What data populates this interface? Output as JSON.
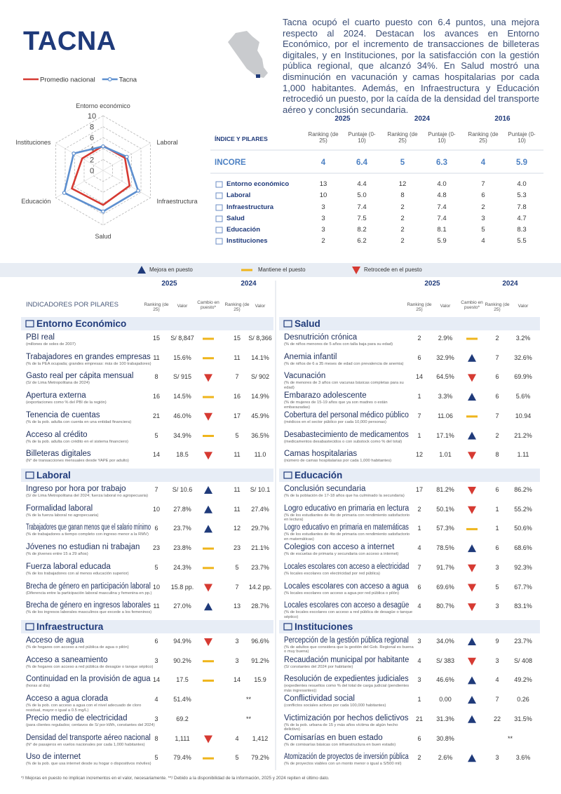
{
  "header": {
    "title": "TACNA",
    "description": "Tacna ocupó el cuarto puesto con 6.4 puntos, una mejora respecto al 2024. Destacan los avances en Entorno Económico, por el incremento de transacciones de billeteras digitales, y en Instituciones, por la satisfacción con la gestión pública regional, que alcanzó 34%. En Salud mostró una disminución en vacunación y camas hospitalarias por cada 1,000 habitantes. Además, en Infraestructura y Educación retrocedió un puesto, por la caída de la densidad del transporte aéreo y conclusión secundaria."
  },
  "radar": {
    "type": "radar",
    "axes": [
      "Entorno económico",
      "Laboral",
      "Infraestructura",
      "Salud",
      "Educación",
      "Instituciones"
    ],
    "rlim": [
      0,
      10
    ],
    "ticks": [
      10,
      8,
      6,
      4,
      2,
      0
    ],
    "series": [
      {
        "name": "Promedio nacional",
        "color": "#d63a32",
        "values": [
          4.5,
          4.6,
          5.6,
          6.3,
          6.6,
          4.4
        ]
      },
      {
        "name": "Tacna",
        "color": "#5d8fcf",
        "marker": "circle",
        "values": [
          4.4,
          5.0,
          7.4,
          7.5,
          8.2,
          6.2
        ]
      }
    ]
  },
  "pillars_table": {
    "years": [
      "2025",
      "2024",
      "2016"
    ],
    "header": "ÍNDICE Y PILARES",
    "col_labels": [
      "Ranking (de 25)",
      "Puntaje (0-10)"
    ],
    "rows": [
      {
        "name": "INCORE",
        "cells": [
          "4",
          "6.4",
          "5",
          "6.3",
          "4",
          "5.9"
        ]
      },
      {
        "name": "Entorno económico",
        "cells": [
          "13",
          "4.4",
          "12",
          "4.0",
          "7",
          "4.0"
        ]
      },
      {
        "name": "Laboral",
        "cells": [
          "10",
          "5.0",
          "8",
          "4.8",
          "6",
          "5.3"
        ]
      },
      {
        "name": "Infraestructura",
        "cells": [
          "3",
          "7.4",
          "2",
          "7.4",
          "2",
          "7.8"
        ]
      },
      {
        "name": "Salud",
        "cells": [
          "3",
          "7.5",
          "2",
          "7.4",
          "3",
          "4.7"
        ]
      },
      {
        "name": "Educación",
        "cells": [
          "3",
          "8.2",
          "2",
          "8.1",
          "5",
          "8.3"
        ]
      },
      {
        "name": "Instituciones",
        "cells": [
          "2",
          "6.2",
          "2",
          "5.9",
          "4",
          "5.5"
        ]
      }
    ]
  },
  "legend": {
    "up": "Mejora en puesto",
    "same": "Mantiene el puesto",
    "down": "Retrocede en el puesto"
  },
  "indicators": {
    "years": [
      "2025",
      "2024"
    ],
    "header": "INDICADORES POR PILARES",
    "col_labels": {
      "ranking": "Ranking (de 25)",
      "value": "Valor",
      "change": "Cambio en puesto*"
    },
    "pillars": [
      {
        "name": "Entorno Económico",
        "rows": [
          {
            "name": "PBI real",
            "note": "(millones de soles de 2007)",
            "r25": "15",
            "v25": "S/ 8,847",
            "change": "same",
            "r24": "15",
            "v24": "S/ 8,366"
          },
          {
            "name": "Trabajadores en grandes empresas",
            "note": "(% de la PEA ocupada; grandes empresas: más de 100 trabajadores)",
            "r25": "11",
            "v25": "15.6%",
            "change": "same",
            "r24": "11",
            "v24": "14.1%"
          },
          {
            "name": "Gasto real per cápita mensual",
            "note": "(S/ de Lima Metropolitana de 2024)",
            "r25": "8",
            "v25": "S/ 915",
            "change": "down",
            "r24": "7",
            "v24": "S/ 902"
          },
          {
            "name": "Apertura externa",
            "note": "(exportaciones como % del PBI de la región)",
            "r25": "16",
            "v25": "14.5%",
            "change": "same",
            "r24": "16",
            "v24": "14.9%"
          },
          {
            "name": "Tenencia de cuentas",
            "note": "(% de la pob. adulta con cuenta en una entidad financiera)",
            "r25": "21",
            "v25": "46.0%",
            "change": "down",
            "r24": "17",
            "v24": "45.9%"
          },
          {
            "name": "Acceso al crédito",
            "note": "(% de la pob. adulta con crédito en el sistema financiero)",
            "r25": "5",
            "v25": "34.9%",
            "change": "same",
            "r24": "5",
            "v24": "36.5%"
          },
          {
            "name": "Billeteras digitales",
            "note": "(N° de transacciones mensuales desde YAPE por adulto)",
            "r25": "14",
            "v25": "18.5",
            "change": "down",
            "r24": "11",
            "v24": "11.0"
          }
        ]
      },
      {
        "name": "Laboral",
        "rows": [
          {
            "name": "Ingreso por hora por trabajo",
            "note": "(S/ de Lima Metropolitana del 2024; fuerza laboral no agropecuaria)",
            "r25": "7",
            "v25": "S/ 10.6",
            "change": "up",
            "r24": "11",
            "v24": "S/ 10.1"
          },
          {
            "name": "Formalidad laboral",
            "note": "(% de la fuerza laboral no agropecuaria)",
            "r25": "10",
            "v25": "27.8%",
            "change": "up",
            "r24": "11",
            "v24": "27.4%"
          },
          {
            "name": "Trabajadores que ganan menos que el salario mínimo",
            "note": "(% de trabajadores a tiempo completo con ingreso menor a la RMV)",
            "r25": "6",
            "v25": "23.7%",
            "change": "up",
            "r24": "12",
            "v24": "29.7%"
          },
          {
            "name": "Jóvenes no estudian ni trabajan",
            "note": "(% de jóvenes entre 15 a 29 años)",
            "r25": "23",
            "v25": "23.8%",
            "change": "same",
            "r24": "23",
            "v24": "21.1%"
          },
          {
            "name": "Fuerza laboral educada",
            "note": "(% de los trabajadores con al menos educación superior)",
            "r25": "5",
            "v25": "24.3%",
            "change": "same",
            "r24": "5",
            "v24": "23.7%"
          },
          {
            "name": "Brecha de género en participación laboral",
            "note": "(Diferencia entre la participación laboral masculina y femenina en pp.)",
            "r25": "10",
            "v25": "15.8 pp.",
            "change": "down",
            "r24": "7",
            "v24": "14.2 pp."
          },
          {
            "name": "Brecha de género en ingresos laborales",
            "note": "(% de los ingresos laborales masculinos que excede a los femeninos)",
            "r25": "11",
            "v25": "27.0%",
            "change": "up",
            "r24": "13",
            "v24": "28.7%"
          }
        ]
      },
      {
        "name": "Infraestructura",
        "rows": [
          {
            "name": "Acceso de agua",
            "note": "(% de hogares con acceso a red pública de agua o pilón)",
            "r25": "6",
            "v25": "94.9%",
            "change": "down",
            "r24": "3",
            "v24": "96.6%"
          },
          {
            "name": "Acceso a saneamiento",
            "note": "(% de hogares con acceso a red pública de desagüe o tanque séptico)",
            "r25": "3",
            "v25": "90.2%",
            "change": "same",
            "r24": "3",
            "v24": "91.2%"
          },
          {
            "name": "Continuidad en la provisión de agua",
            "note": "(horas al día)",
            "r25": "14",
            "v25": "17.5",
            "change": "same",
            "r24": "14",
            "v24": "15.9"
          },
          {
            "name": "Acceso a agua clorada",
            "note": "(% de la pob. con acceso a agua con el nivel adecuado de cloro residual, mayor o igual a 0.5 mg/L)",
            "r25": "4",
            "v25": "51.4%",
            "r24": "**"
          },
          {
            "name": "Precio medio de electricidad",
            "note": "(para clientes regulados; centavos de S/ por kWh, constantes del 2024)",
            "r25": "3",
            "v25": "69.2",
            "r24": "**"
          },
          {
            "name": "Densidad del transporte aéreo nacional",
            "note": "(N° de pasajeros en vuelos nacionales por cada 1,000 habitantes)",
            "r25": "8",
            "v25": "1,111",
            "change": "down",
            "r24": "4",
            "v24": "1,412"
          },
          {
            "name": "Uso de internet",
            "note": "(% de la pob. que usa internet desde su hogar o dispositivos móviles)",
            "r25": "5",
            "v25": "79.4%",
            "change": "same",
            "r24": "5",
            "v24": "79.2%"
          }
        ]
      },
      {
        "name": "Salud",
        "rows": [
          {
            "name": "Desnutrición crónica",
            "note": "(% de niños menores de 5 años con talla baja para su edad)",
            "r25": "2",
            "v25": "2.9%",
            "change": "same",
            "r24": "2",
            "v24": "3.2%"
          },
          {
            "name": "Anemia infantil",
            "note": "(% de niños de 6 a 35 meses de edad con prevalencia de anemia)",
            "r25": "6",
            "v25": "32.9%",
            "change": "up",
            "r24": "7",
            "v24": "32.6%"
          },
          {
            "name": "Vacunación",
            "note": "(% de menores de 3 años con vacunas básicas completas para su edad)",
            "r25": "14",
            "v25": "64.5%",
            "change": "down",
            "r24": "6",
            "v24": "69.9%"
          },
          {
            "name": "Embarazo adolescente",
            "note": "(% de mujeres de 15-19 años que ya son madres o están embarazadas)",
            "r25": "1",
            "v25": "3.3%",
            "change": "up",
            "r24": "6",
            "v24": "5.6%"
          },
          {
            "name": "Cobertura del personal médico público",
            "note": "(médicos en el sector público por cada 10,000 personas)",
            "r25": "7",
            "v25": "11.06",
            "change": "same",
            "r24": "7",
            "v24": "10.94"
          },
          {
            "name": "Desabastecimiento de medicamentos",
            "note": "(medicamentos desabastecidos o con substock como % del total)",
            "r25": "1",
            "v25": "17.1%",
            "change": "up",
            "r24": "2",
            "v24": "21.2%"
          },
          {
            "name": "Camas hospitalarias",
            "note": "(número de camas hospitalarias por cada 1,000 habitantes)",
            "r25": "12",
            "v25": "1.01",
            "change": "down",
            "r24": "8",
            "v24": "1.11"
          }
        ]
      },
      {
        "name": "Educación",
        "rows": [
          {
            "name": "Conclusión secundaria",
            "note": "(% de la población de 17-18 años que ha culminado la secundaria)",
            "r25": "17",
            "v25": "81.2%",
            "change": "down",
            "r24": "6",
            "v24": "86.2%"
          },
          {
            "name": "Logro educativo en primaria en lectura",
            "note": "(% de los estudiantes de 4to de primaria con rendimiento satisfactorio en lectura)",
            "r25": "2",
            "v25": "50.1%",
            "change": "down",
            "r24": "1",
            "v24": "55.2%"
          },
          {
            "name": "Logro educativo en primaria en matemáticas",
            "note": "(% de los estudiantes de 4to de primaria con rendimiento satisfactorio en matemáticas)",
            "r25": "1",
            "v25": "57.3%",
            "change": "same",
            "r24": "1",
            "v24": "50.6%"
          },
          {
            "name": "Colegios con acceso a internet",
            "note": "(% de escuelas de primaria y secundaria con acceso a internet)",
            "r25": "4",
            "v25": "78.5%",
            "change": "up",
            "r24": "6",
            "v24": "68.6%"
          },
          {
            "name": "Locales escolares con acceso a electricidad",
            "note": "(% locales escolares con electricidad por red pública)",
            "r25": "7",
            "v25": "91.7%",
            "change": "down",
            "r24": "3",
            "v24": "92.3%"
          },
          {
            "name": "Locales escolares con acceso a agua",
            "note": "(% locales escolares con acceso a agua por red pública o pilón)",
            "r25": "6",
            "v25": "69.6%",
            "change": "down",
            "r24": "5",
            "v24": "67.7%"
          },
          {
            "name": "Locales escolares con acceso a desagüe",
            "note": "(% de locales escolares con acceso a red pública de desagüe o tanque séptico)",
            "r25": "4",
            "v25": "80.7%",
            "change": "down",
            "r24": "3",
            "v24": "83.1%"
          }
        ]
      },
      {
        "name": "Instituciones",
        "rows": [
          {
            "name": "Percepción de la gestión pública regional",
            "note": "(% de adultos que considera que la gestión del Gob. Regional es buena o muy buena)",
            "r25": "3",
            "v25": "34.0%",
            "change": "up",
            "r24": "9",
            "v24": "23.7%"
          },
          {
            "name": "Recaudación municipal por habitante",
            "note": "(S/ constantes del 2024 por habitante)",
            "r25": "4",
            "v25": "S/ 383",
            "change": "down",
            "r24": "3",
            "v24": "S/ 408"
          },
          {
            "name": "Resolución de expedientes judiciales",
            "note": "(expedientes resueltos como % del total de carga judicial (pendientes más ingresantes))",
            "r25": "3",
            "v25": "46.6%",
            "change": "up",
            "r24": "4",
            "v24": "49.2%"
          },
          {
            "name": "Conflictividad social",
            "note": "(conflictos sociales activos por cada 100,000 habitantes)",
            "r25": "1",
            "v25": "0.00",
            "change": "up",
            "r24": "7",
            "v24": "0.26"
          },
          {
            "name": "Victimización por hechos delictivos",
            "note": "(% de la pob. urbana de 15 y más años víctima de algún hecho delictivo)",
            "r25": "21",
            "v25": "31.3%",
            "change": "up",
            "r24": "22",
            "v24": "31.5%"
          },
          {
            "name": "Comisarías en buen estado",
            "note": "(% de comisarías básicas con infraestructura en buen estado)",
            "r25": "6",
            "v25": "30.8%",
            "r24": "**"
          },
          {
            "name": "Atomización de proyectos de inversión pública",
            "note": "(% de proyectos viables con un monto menor o igual a S/500 mil)",
            "r25": "2",
            "v25": "2.6%",
            "change": "up",
            "r24": "3",
            "v24": "3.6%"
          }
        ]
      }
    ]
  },
  "footnote": "*/ Mejoras en puesto no implican incrementos en el valor, necesariamente. **/ Debido a la disponibilidad de la información, 2025 y 2024 repiten el último dato."
}
